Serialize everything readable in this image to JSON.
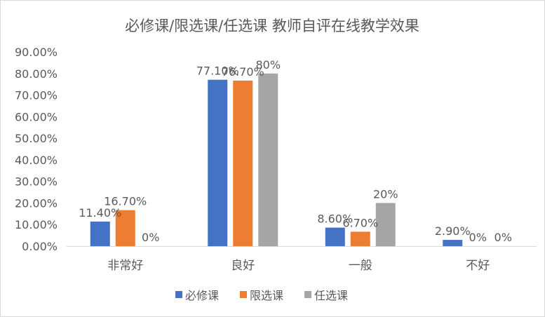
{
  "chart_data": {
    "type": "bar",
    "title": "必修课/限选课/任选课 教师自评在线教学效果",
    "categories": [
      "非常好",
      "良好",
      "一般",
      "不好"
    ],
    "y_ticks": [
      "0.00%",
      "10.00%",
      "20.00%",
      "30.00%",
      "40.00%",
      "50.00%",
      "60.00%",
      "70.00%",
      "80.00%",
      "90.00%"
    ],
    "ylim": [
      0,
      90
    ],
    "grid": false,
    "legend_position": "bottom",
    "series": [
      {
        "name": "必修课",
        "color": "#4472c4",
        "values": [
          11.4,
          77.1,
          8.6,
          2.9
        ],
        "labels": [
          "11.40%",
          "77.10%",
          "8.60%",
          "2.90%"
        ]
      },
      {
        "name": "限选课",
        "color": "#ed7d31",
        "values": [
          16.7,
          76.7,
          6.7,
          0
        ],
        "labels": [
          "16.70%",
          "76.70%",
          "6.70%",
          "0%"
        ]
      },
      {
        "name": "任选课",
        "color": "#a5a5a5",
        "values": [
          0,
          80,
          20,
          0
        ],
        "labels": [
          "0%",
          "80%",
          "20%",
          "0%"
        ]
      }
    ]
  }
}
